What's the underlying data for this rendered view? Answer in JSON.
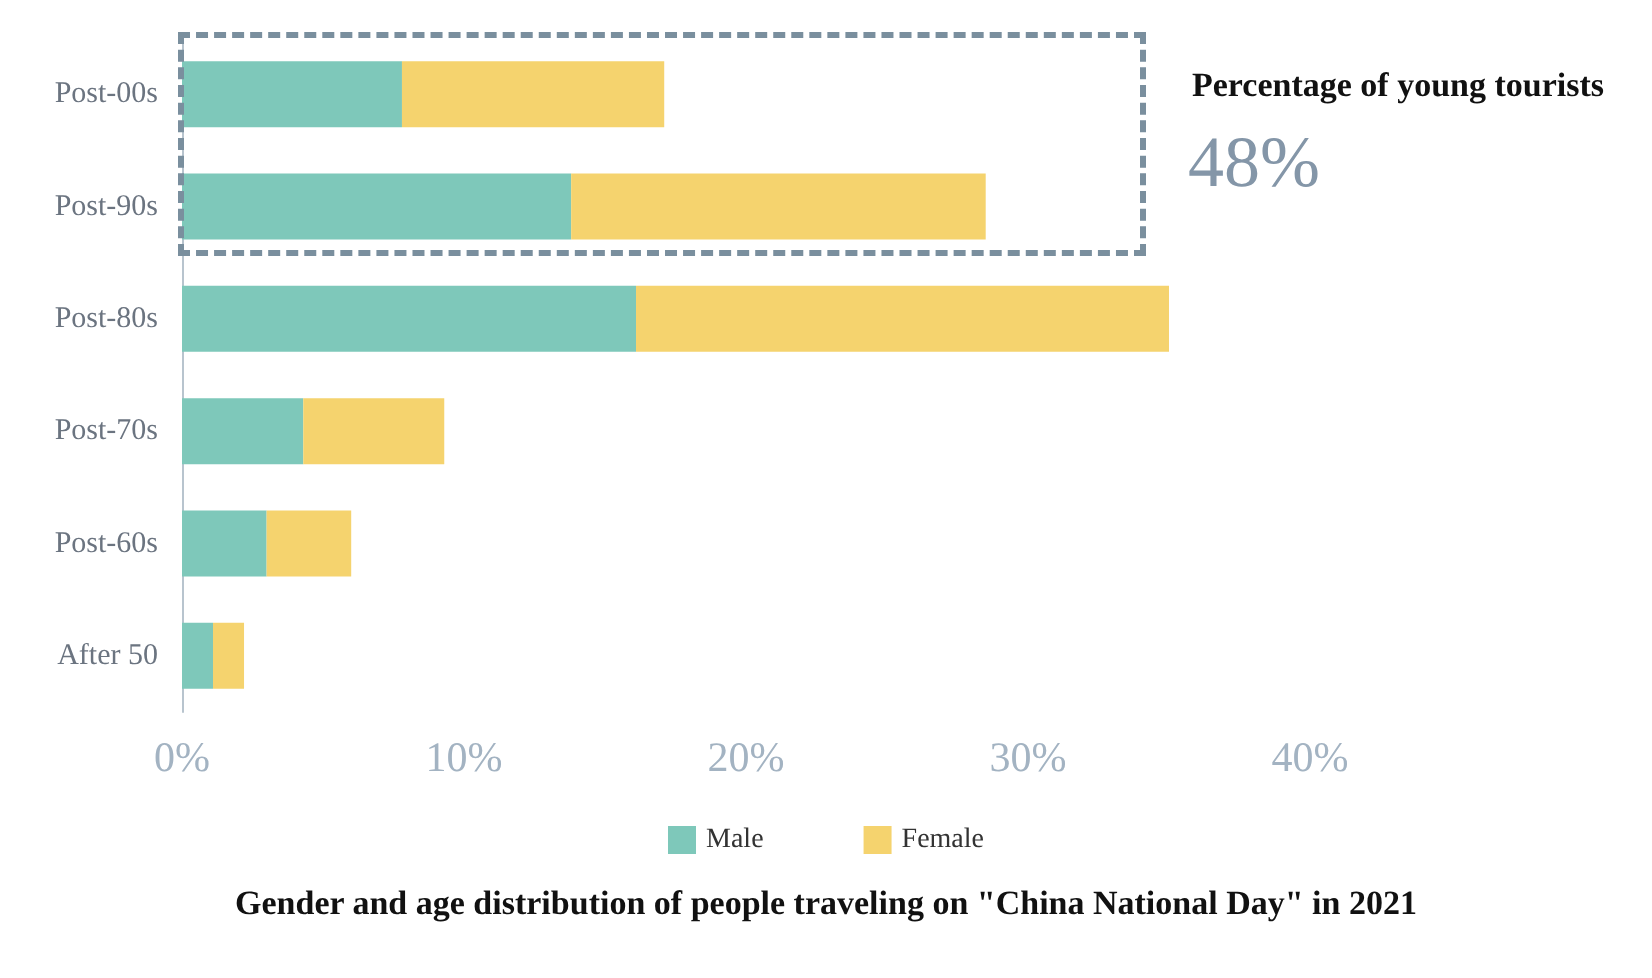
{
  "chart_data": {
    "type": "bar",
    "orientation": "horizontal",
    "stacked": true,
    "title": "Gender and age distribution of people traveling on \"China National Day\" in 2021",
    "categories": [
      "Post-00s",
      "Post-90s",
      "Post-80s",
      "Post-70s",
      "Post-60s",
      "After 50"
    ],
    "series": [
      {
        "name": "Male",
        "color": "#7ec8ba",
        "values": [
          7.8,
          13.8,
          16.1,
          4.3,
          3.0,
          1.1
        ]
      },
      {
        "name": "Female",
        "color": "#f5d36e",
        "values": [
          9.3,
          14.7,
          18.9,
          5.0,
          3.0,
          1.1
        ]
      }
    ],
    "xlim": [
      0,
      40
    ],
    "xticks": [
      {
        "value": 0,
        "label": "0%"
      },
      {
        "value": 10,
        "label": "10%"
      },
      {
        "value": 20,
        "label": "20%"
      },
      {
        "value": 30,
        "label": "30%"
      },
      {
        "value": 40,
        "label": "40%"
      }
    ],
    "grid": false,
    "legend": "bottom",
    "annotations": [
      "Percentage of young tourists",
      "48%"
    ]
  }
}
